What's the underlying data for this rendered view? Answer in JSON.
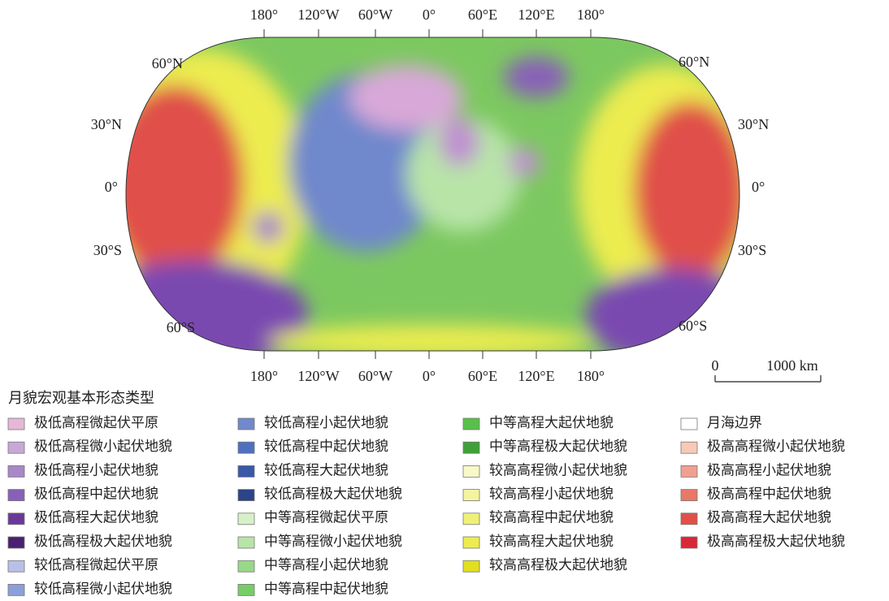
{
  "map": {
    "top_labels": [
      "180°",
      "120°W",
      "60°W",
      "0°",
      "60°E",
      "120°E",
      "180°"
    ],
    "bottom_labels": [
      "180°",
      "120°W",
      "60°W",
      "0°",
      "60°E",
      "120°E",
      "180°"
    ],
    "left_labels": [
      "60°N",
      "30°N",
      "0°",
      "30°S",
      "60°S"
    ],
    "right_labels": [
      "60°N",
      "30°N",
      "0°",
      "30°S",
      "60°S"
    ],
    "scale_bar": {
      "labels": [
        "0",
        "1000 km"
      ]
    }
  },
  "legend": {
    "title": "月貌宏观基本形态类型",
    "columns": [
      [
        {
          "label": "极低高程微起伏平原",
          "color": "#e6b8d8"
        },
        {
          "label": "极低高程微小起伏地貌",
          "color": "#c8a8d8"
        },
        {
          "label": "极低高程小起伏地貌",
          "color": "#a888c8"
        },
        {
          "label": "极低高程中起伏地貌",
          "color": "#8860b8"
        },
        {
          "label": "极低高程大起伏地貌",
          "color": "#6a3898"
        },
        {
          "label": "极低高程极大起伏地貌",
          "color": "#4a2070"
        },
        {
          "label": "较低高程微起伏平原",
          "color": "#b8c0e6"
        },
        {
          "label": "较低高程微小起伏地貌",
          "color": "#8ca0d8"
        }
      ],
      [
        {
          "label": "较低高程小起伏地貌",
          "color": "#7088cc"
        },
        {
          "label": "较低高程中起伏地貌",
          "color": "#4f70c0"
        },
        {
          "label": "较低高程大起伏地貌",
          "color": "#3a58a8"
        },
        {
          "label": "较低高程极大起伏地貌",
          "color": "#2c4488"
        },
        {
          "label": "中等高程微起伏平原",
          "color": "#d8f0c8"
        },
        {
          "label": "中等高程微小起伏地貌",
          "color": "#b8e4a8"
        },
        {
          "label": "中等高程小起伏地貌",
          "color": "#98d888"
        },
        {
          "label": "中等高程中起伏地貌",
          "color": "#78cc68"
        }
      ],
      [
        {
          "label": "中等高程大起伏地貌",
          "color": "#58c048"
        },
        {
          "label": "中等高程极大起伏地貌",
          "color": "#40a038"
        },
        {
          "label": "较高高程微小起伏地貌",
          "color": "#f8f8c8"
        },
        {
          "label": "较高高程小起伏地貌",
          "color": "#f4f4a0"
        },
        {
          "label": "较高高程中起伏地貌",
          "color": "#f0f078"
        },
        {
          "label": "较高高程大起伏地貌",
          "color": "#ecec50"
        },
        {
          "label": "较高高程极大起伏地貌",
          "color": "#e0e020"
        }
      ],
      [
        {
          "label": "月海边界",
          "color": "#ffffff"
        },
        {
          "label": "极高高程微小起伏地貌",
          "color": "#f8c8b8"
        },
        {
          "label": "极高高程小起伏地貌",
          "color": "#f0a090"
        },
        {
          "label": "极高高程中起伏地貌",
          "color": "#e87868"
        },
        {
          "label": "极高高程大起伏地貌",
          "color": "#e05048"
        },
        {
          "label": "极高高程极大起伏地貌",
          "color": "#d82838"
        }
      ]
    ]
  }
}
